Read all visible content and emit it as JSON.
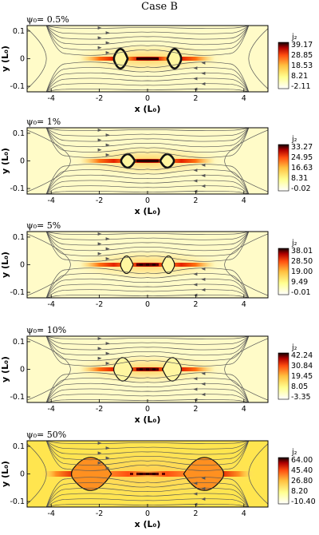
{
  "title": "Case B",
  "chart_data": [
    {
      "type": "heatmap",
      "label": "ψ₀= 0.5%",
      "xlabel": "x (L₀)",
      "ylabel": "y (L₀)",
      "xlim": [
        -5,
        5
      ],
      "ylim": [
        -0.12,
        0.12
      ],
      "xticks": [
        -4,
        -2,
        0,
        2,
        4
      ],
      "yticks": [
        -0.1,
        0,
        0.1
      ],
      "colorbar": {
        "title": "j₂",
        "ticks": [
          "39.17",
          "28.85",
          "18.53",
          "8.21",
          "-2.11"
        ]
      },
      "islands": [
        {
          "x": -1.1,
          "w": 0.55,
          "h": 0.05
        },
        {
          "x": 1.1,
          "w": 0.55,
          "h": 0.05
        }
      ]
    },
    {
      "type": "heatmap",
      "label": "ψ₀= 1%",
      "xlabel": "x (L₀)",
      "ylabel": "y (L₀)",
      "xlim": [
        -5,
        5
      ],
      "ylim": [
        -0.12,
        0.12
      ],
      "xticks": [
        -4,
        -2,
        0,
        2,
        4
      ],
      "yticks": [
        -0.1,
        0,
        0.1
      ],
      "colorbar": {
        "title": "j₂",
        "ticks": [
          "33.27",
          "24.95",
          "16.63",
          "8.31",
          "-0.02"
        ]
      },
      "islands": [
        {
          "x": -0.8,
          "w": 0.55,
          "h": 0.035
        },
        {
          "x": 0.8,
          "w": 0.55,
          "h": 0.035
        }
      ]
    },
    {
      "type": "heatmap",
      "label": "ψ₀= 5%",
      "xlabel": "",
      "ylabel": "y (L₀)",
      "xlim": [
        -5,
        5
      ],
      "ylim": [
        -0.12,
        0.12
      ],
      "xticks": [
        -4,
        -2,
        0,
        2,
        4
      ],
      "yticks": [
        -0.1,
        0,
        0.1
      ],
      "colorbar": {
        "title": "j₂",
        "ticks": [
          "38.01",
          "28.50",
          "19.00",
          "9.49",
          "-0.01"
        ]
      },
      "islands": [
        {
          "x": -0.85,
          "w": 0.5,
          "h": 0.045
        },
        {
          "x": 0.85,
          "w": 0.5,
          "h": 0.045
        }
      ]
    },
    {
      "type": "heatmap",
      "label": "ψ₀= 10%",
      "xlabel": "x (L₀)",
      "ylabel": "y (L₀)",
      "xlim": [
        -5,
        5
      ],
      "ylim": [
        -0.12,
        0.12
      ],
      "xticks": [
        -4,
        -2,
        0,
        2,
        4
      ],
      "yticks": [
        -0.1,
        0,
        0.1
      ],
      "colorbar": {
        "title": "j₂",
        "ticks": [
          "42.24",
          "30.84",
          "19.45",
          "8.05",
          "-3.35"
        ]
      },
      "islands": [
        {
          "x": -1.0,
          "w": 0.75,
          "h": 0.06
        },
        {
          "x": 1.0,
          "w": 0.75,
          "h": 0.06
        }
      ]
    },
    {
      "type": "heatmap",
      "label": "ψ₀= 50%",
      "xlabel": "x (L₀)",
      "ylabel": "y (L₀)",
      "xlim": [
        -5,
        5
      ],
      "ylim": [
        -0.12,
        0.12
      ],
      "xticks": [
        -4,
        -2,
        0,
        2,
        4
      ],
      "yticks": [
        -0.1,
        0,
        0.1
      ],
      "colorbar": {
        "title": "j₂",
        "ticks": [
          "64.00",
          "45.40",
          "26.80",
          "8.20",
          "-10.40"
        ]
      },
      "islands": [
        {
          "x": -2.3,
          "w": 1.6,
          "h": 0.085
        },
        {
          "x": 2.3,
          "w": 1.6,
          "h": 0.085
        }
      ]
    }
  ]
}
